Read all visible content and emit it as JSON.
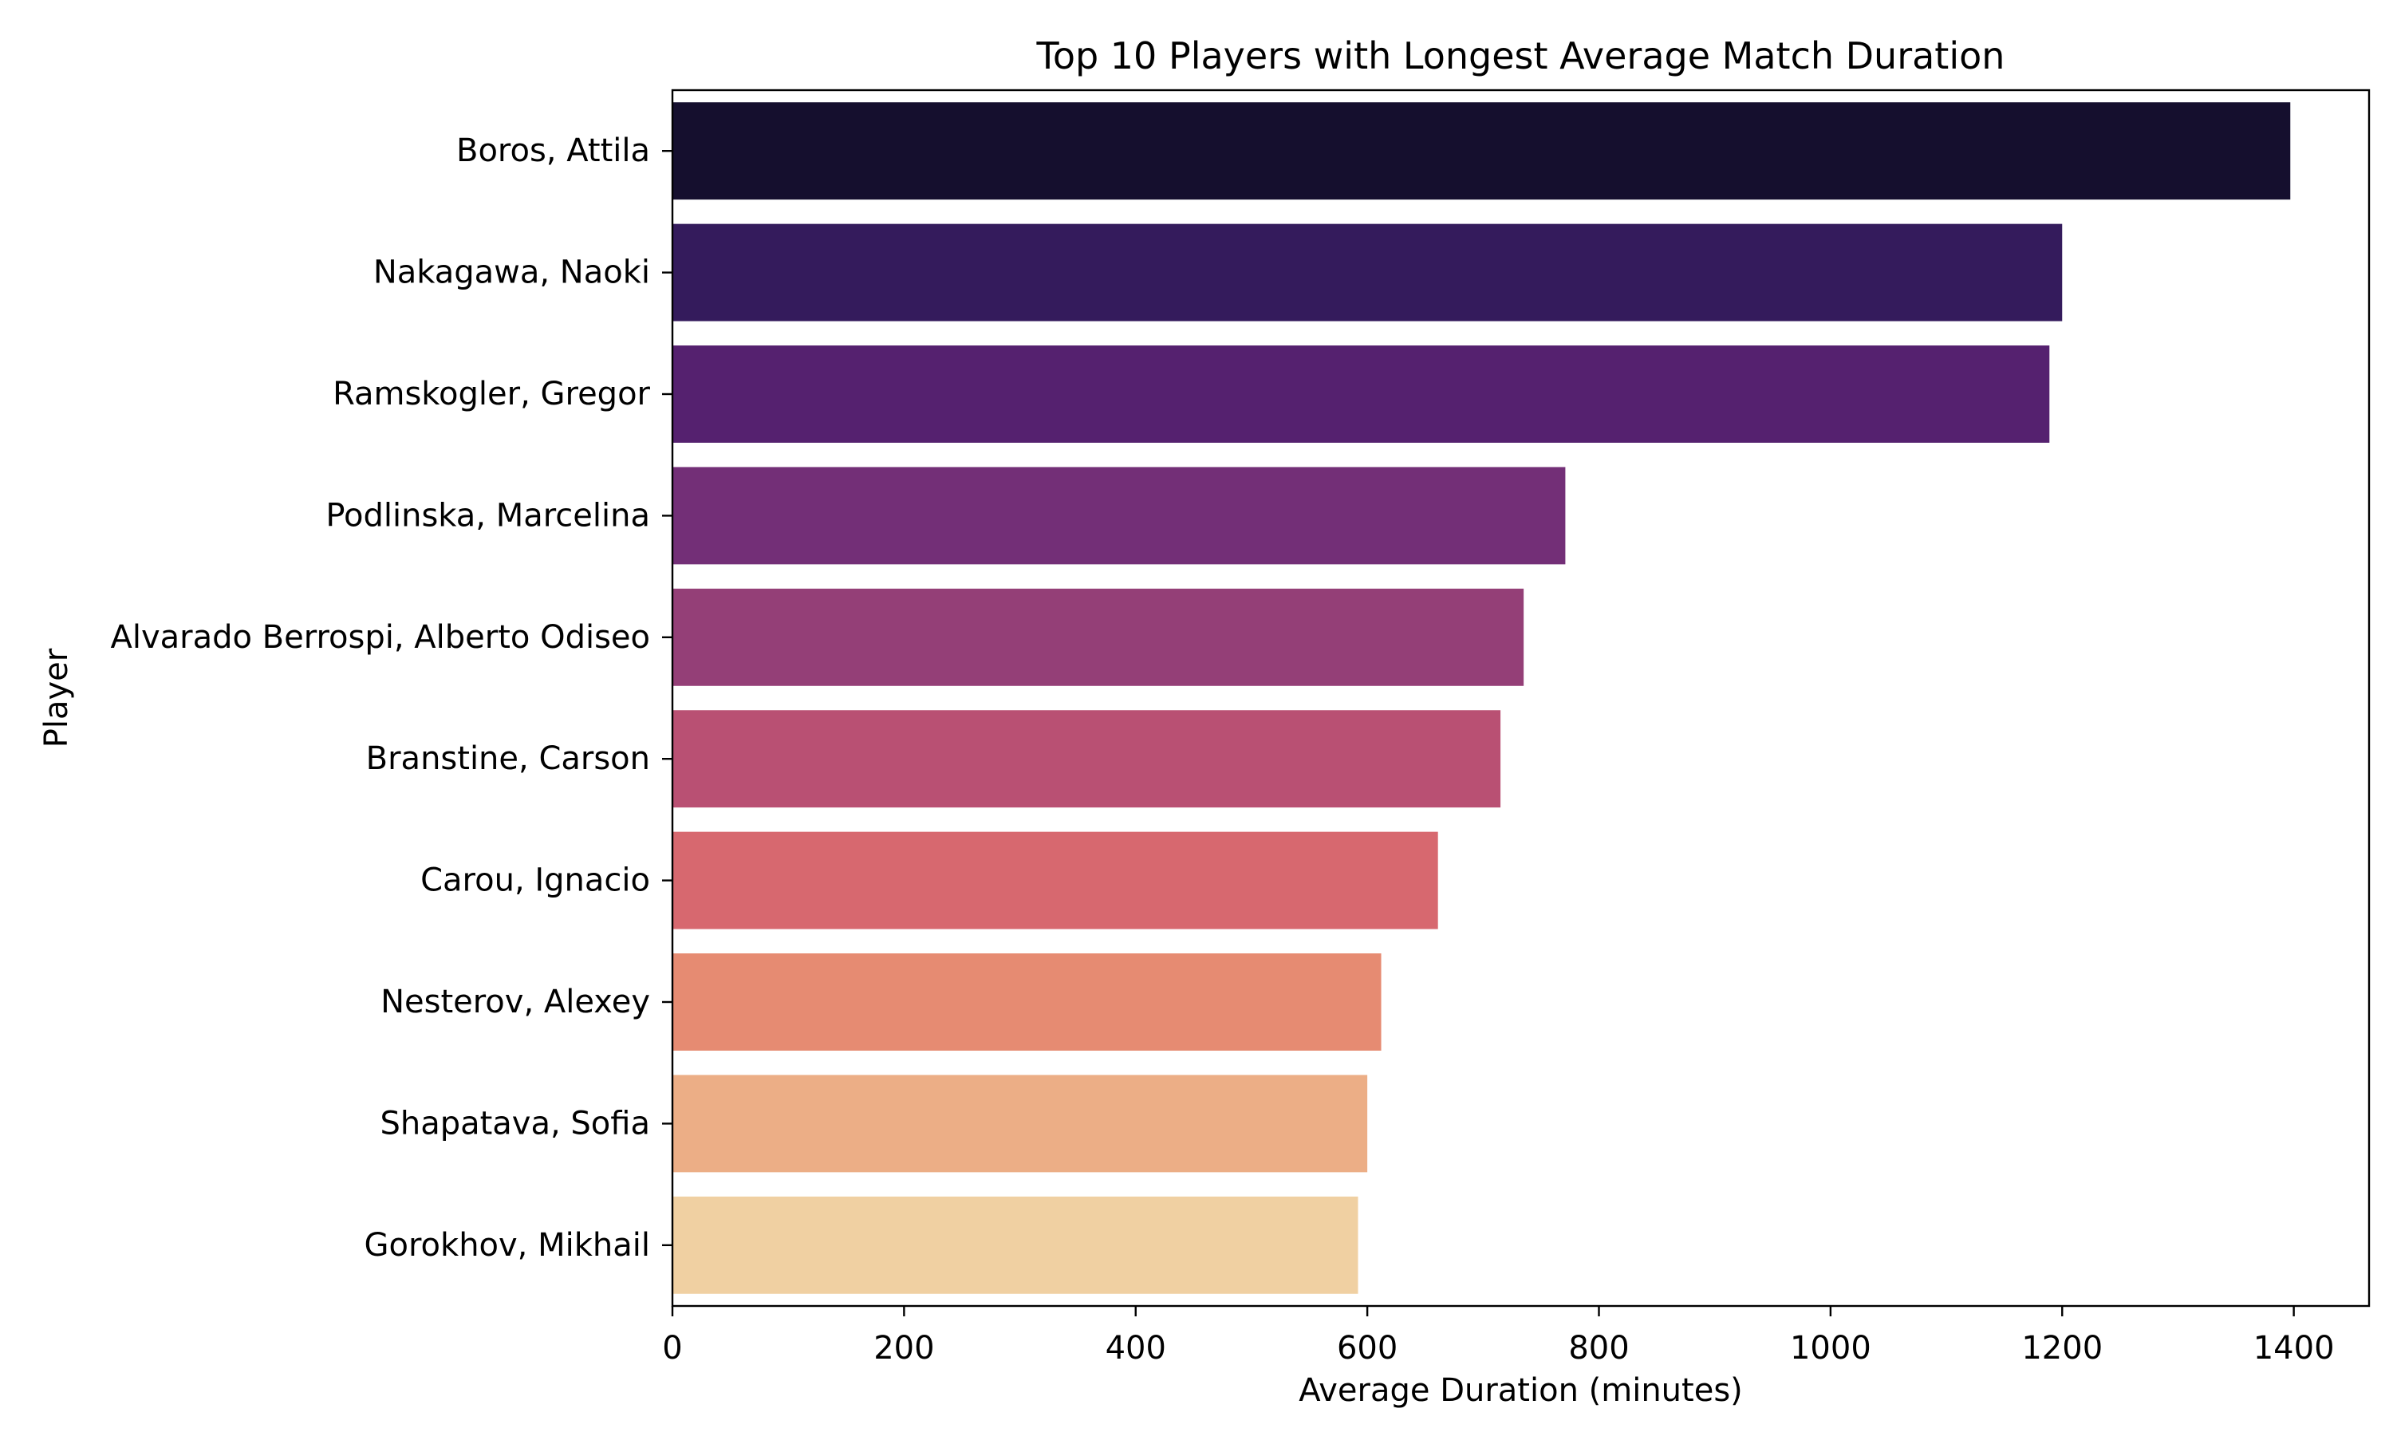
{
  "chart_data": {
    "type": "bar",
    "orientation": "horizontal",
    "title": "Top 10 Players with Longest Average Match Duration",
    "xlabel": "Average Duration (minutes)",
    "ylabel": "Player",
    "xlim": [
      0,
      1465
    ],
    "xticks": [
      0,
      200,
      400,
      600,
      800,
      1000,
      1200,
      1400
    ],
    "grid": false,
    "categories": [
      "Boros, Attila",
      "Nakagawa, Naoki",
      "Ramskogler, Gregor",
      "Podlinska, Marcelina",
      "Alvarado Berrospi, Alberto Odiseo",
      "Branstine, Carson",
      "Carou, Ignacio",
      "Nesterov, Alexey",
      "Shapatava, Sofia",
      "Gorokhov, Mikhail"
    ],
    "values": [
      1397,
      1200,
      1189,
      771,
      735,
      715,
      661,
      612,
      600,
      592
    ],
    "colors": [
      "#150f2e",
      "#341b5c",
      "#55216f",
      "#732f77",
      "#943f77",
      "#b95073",
      "#d7686f",
      "#e68b72",
      "#ecae86",
      "#f0d0a2"
    ]
  }
}
